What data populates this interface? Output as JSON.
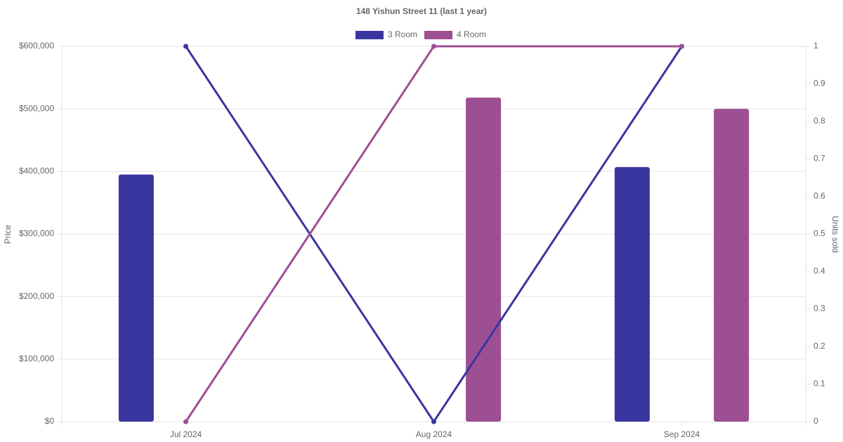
{
  "chart_data": {
    "type": "bar-line",
    "title": "148 Yishun Street 11 (last 1 year)",
    "y_label": "Price",
    "y2_label": "Units sold",
    "categories": [
      "Jul 2024",
      "Aug 2024",
      "Sep 2024"
    ],
    "series": [
      {
        "name": "3 Room",
        "color": "#3a36a0",
        "values": [
          395000,
          null,
          407000
        ],
        "y2_values": [
          1,
          0,
          1
        ]
      },
      {
        "name": "4 Room",
        "color": "#9d4f93",
        "values": [
          null,
          518000,
          500000
        ],
        "y2_values": [
          0,
          1,
          1
        ]
      }
    ],
    "ylim": [
      0,
      600000
    ],
    "yticks": [
      {
        "value": 0,
        "label": "$0"
      },
      {
        "value": 100000,
        "label": "$100,000"
      },
      {
        "value": 200000,
        "label": "$200,000"
      },
      {
        "value": 300000,
        "label": "$300,000"
      },
      {
        "value": 400000,
        "label": "$400,000"
      },
      {
        "value": 500000,
        "label": "$500,000"
      },
      {
        "value": 600000,
        "label": "$600,000"
      }
    ],
    "y2lim": [
      0,
      1
    ],
    "y2ticks": [
      0,
      0.1,
      0.2,
      0.3,
      0.4,
      0.5,
      0.6,
      0.7,
      0.8,
      0.9,
      1
    ],
    "grid": true,
    "legend": "top"
  }
}
